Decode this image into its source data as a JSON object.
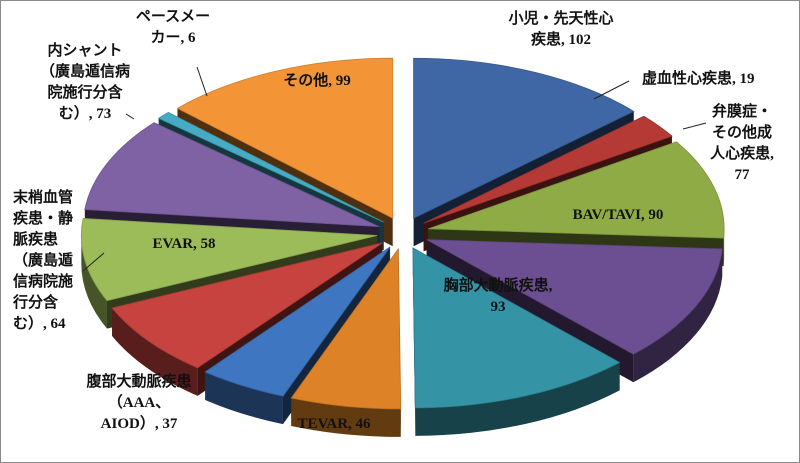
{
  "chart_data": {
    "type": "pie",
    "style": "exploded-3d",
    "slices": [
      {
        "label": "小児・先天性心\n疾患",
        "value": 102,
        "color": "#3f66a5",
        "label_text": "小児・先天性心\n疾患, 102"
      },
      {
        "label": "虚血性心疾患",
        "value": 19,
        "color": "#b53a36",
        "label_text": "虚血性心疾患, 19"
      },
      {
        "label": "弁膜症・\nその他成\n人心疾患",
        "value": 77,
        "color": "#8eab46",
        "label_text": "弁膜症・\nその他成\n人心疾患,\n77"
      },
      {
        "label": "BAV/TAVI",
        "value": 90,
        "color": "#6c4f92",
        "label_text": "BAV/TAVI, 90"
      },
      {
        "label": "胸部大動脈疾患",
        "value": 93,
        "color": "#3493a5",
        "label_text": "胸部大動脈疾患,\n93"
      },
      {
        "label": "TEVAR",
        "value": 46,
        "color": "#dd8226",
        "label_text": "TEVAR, 46"
      },
      {
        "label": "腹部大動脈疾患\n（AAA、\nAIOD）",
        "value": 37,
        "color": "#3e76c1",
        "label_text": "腹部大動脈疾患\n（AAA、\nAIOD）, 37"
      },
      {
        "label": "EVAR",
        "value": 58,
        "color": "#c6433f",
        "label_text": "EVAR, 58"
      },
      {
        "label": "末梢血管\n疾患・静\n脈疾患\n（廣島遁\n信病院施\n行分含\nむ）",
        "value": 64,
        "color": "#9cbb59",
        "label_text": "末梢血管\n疾患・静\n脈疾患\n（廣島遁\n信病院施\n行分含\nむ）, 64"
      },
      {
        "label": "内シャント\n（廣島遁信病\n院施行分含\nむ）",
        "value": 73,
        "color": "#7f62a3",
        "label_text": "内シャント\n（廣島遁信病\n院施行分含\nむ）, 73"
      },
      {
        "label": "ペースメー\nカー",
        "value": 6,
        "color": "#46acc6",
        "label_text": "ペースメー\nカー, 6"
      },
      {
        "label": "その他",
        "value": 99,
        "color": "#f39536",
        "label_text": "その他, 99"
      }
    ]
  }
}
